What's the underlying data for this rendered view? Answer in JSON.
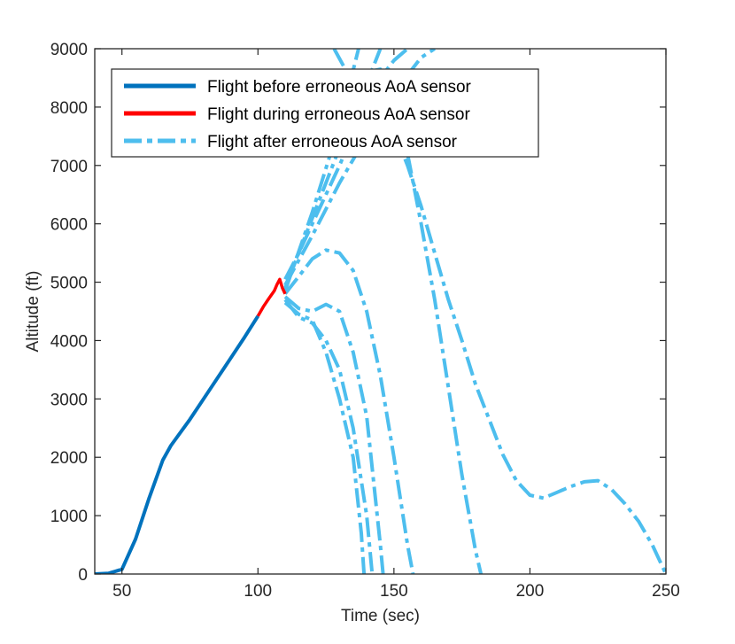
{
  "chart_data": {
    "type": "line",
    "title": "",
    "xlabel": "Time (sec)",
    "ylabel": "Altitude (ft)",
    "xlim": [
      40,
      250
    ],
    "ylim": [
      0,
      9000
    ],
    "xticks": [
      "50",
      "100",
      "150",
      "200",
      "250"
    ],
    "yticks": [
      "0",
      "1000",
      "2000",
      "3000",
      "4000",
      "5000",
      "6000",
      "7000",
      "8000",
      "9000"
    ],
    "grid": false,
    "legend_position": "top-left",
    "colors": {
      "before": "#0072BD",
      "during": "#FF0000",
      "after": "#4DBEEE"
    },
    "series": [
      {
        "name": "Flight before erroneous AoA sensor",
        "style": "solid",
        "color": "#0072BD",
        "x": [
          40,
          45,
          50,
          55,
          60,
          65,
          68,
          75,
          80,
          85,
          90,
          95,
          100
        ],
        "y": [
          0,
          10,
          80,
          600,
          1300,
          1950,
          2200,
          2650,
          3000,
          3350,
          3700,
          4050,
          4420
        ]
      },
      {
        "name": "Flight during erroneous AoA sensor",
        "style": "solid",
        "color": "#FF0000",
        "x": [
          100,
          102,
          104,
          106,
          107,
          108,
          109,
          110
        ],
        "y": [
          4420,
          4580,
          4720,
          4850,
          4960,
          5050,
          4900,
          4800
        ]
      },
      {
        "name": "Flight after erroneous AoA sensor",
        "style": "dashdot",
        "color": "#4DBEEE",
        "traces": [
          {
            "x": [
              110,
              115,
              120,
              125,
              130,
              135,
              140,
              145,
              150,
              155,
              160,
              163
            ],
            "y": [
              5050,
              5500,
              6000,
              6500,
              7000,
              7550,
              8050,
              8500,
              8800,
              9000,
              9200,
              9300
            ]
          },
          {
            "x": [
              110,
              120,
              130,
              140,
              150,
              160,
              165
            ],
            "y": [
              4950,
              5800,
              6700,
              7500,
              8250,
              8850,
              9000
            ]
          },
          {
            "x": [
              110,
              120,
              130,
              140,
              145
            ],
            "y": [
              4900,
              6100,
              7300,
              8400,
              9000
            ]
          },
          {
            "x": [
              110,
              120,
              130,
              137
            ],
            "y": [
              4850,
              6200,
              7700,
              9000
            ]
          },
          {
            "x": [
              128,
              135,
              140,
              145,
              150,
              155,
              160,
              165,
              170,
              175,
              180,
              185,
              190,
              195,
              200,
              205,
              210,
              215,
              220,
              225,
              230,
              235,
              240,
              245,
              250
            ],
            "y": [
              9000,
              8400,
              8400,
              8050,
              7600,
              7000,
              6300,
              5500,
              4700,
              4000,
              3250,
              2650,
              2050,
              1600,
              1350,
              1300,
              1400,
              1500,
              1580,
              1600,
              1450,
              1200,
              900,
              500,
              0
            ]
          },
          {
            "x": [
              140,
              145,
              150,
              155,
              160,
              165,
              170,
              175,
              180,
              182
            ],
            "y": [
              8600,
              8650,
              8100,
              7200,
              6000,
              4700,
              3200,
              1700,
              400,
              0
            ]
          },
          {
            "x": [
              110,
              115,
              120,
              125,
              130,
              135,
              140,
              145,
              150,
              155,
              157
            ],
            "y": [
              4800,
              5100,
              5400,
              5550,
              5500,
              5200,
              4500,
              3400,
              2000,
              500,
              0
            ]
          },
          {
            "x": [
              110,
              115,
              120,
              125,
              130,
              135,
              140,
              145,
              146
            ],
            "y": [
              4750,
              4550,
              4500,
              4620,
              4500,
              3800,
              2700,
              500,
              0
            ]
          },
          {
            "x": [
              110,
              115,
              120,
              125,
              130,
              135,
              140,
              142
            ],
            "y": [
              4700,
              4400,
              4300,
              4000,
              3500,
              2500,
              1000,
              0
            ]
          },
          {
            "x": [
              110,
              115,
              120,
              125,
              130,
              135,
              138,
              139
            ],
            "y": [
              4650,
              4450,
              4350,
              3800,
              3000,
              2000,
              700,
              0
            ]
          }
        ]
      }
    ]
  }
}
